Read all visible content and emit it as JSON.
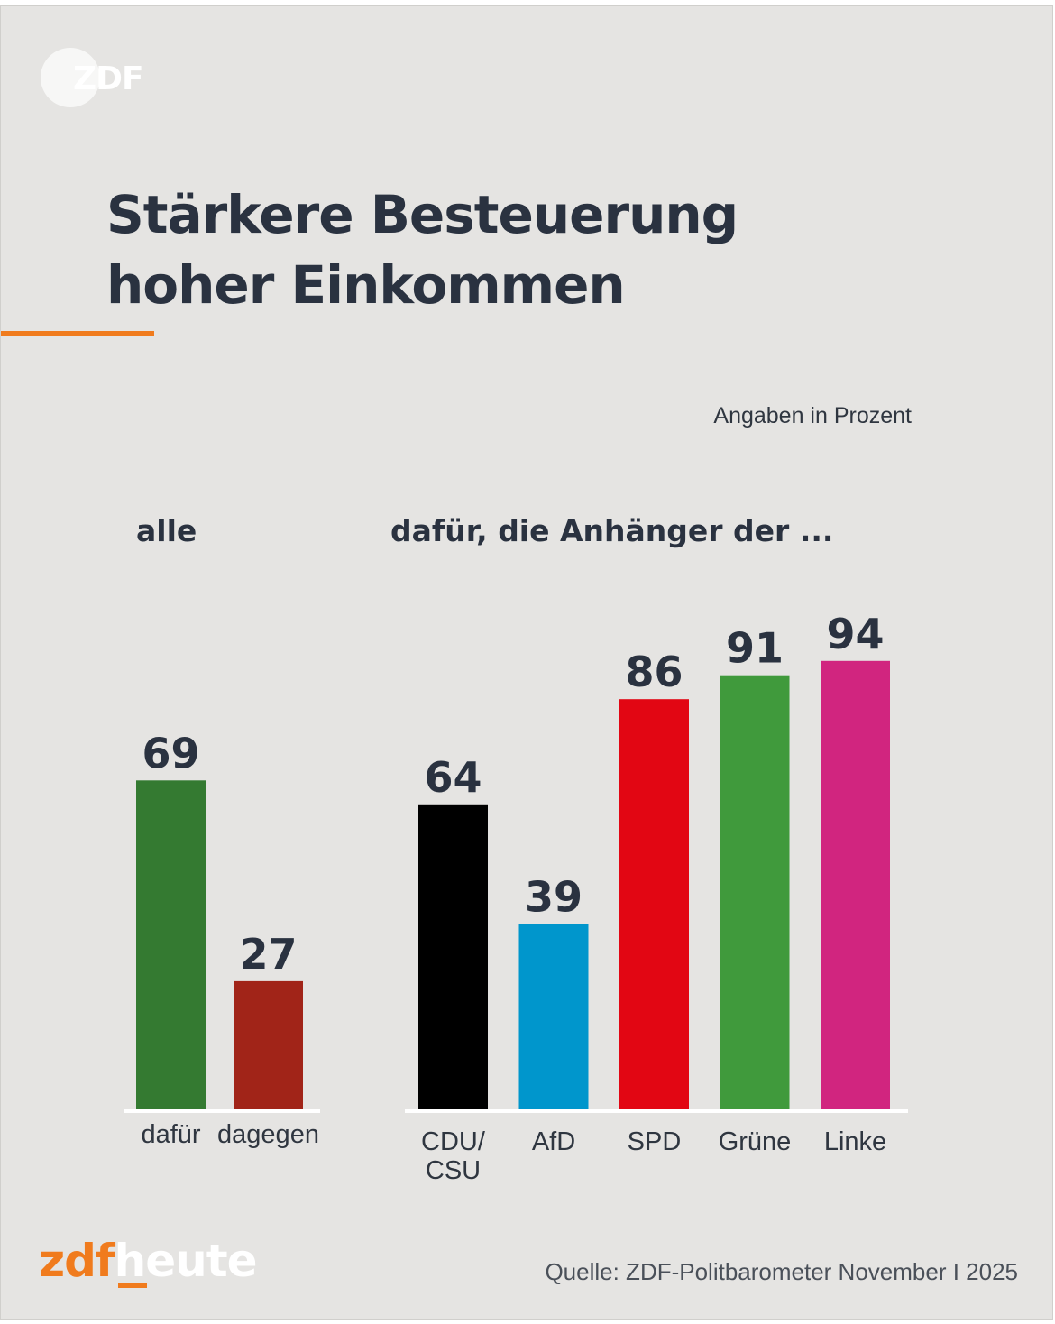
{
  "logo": {
    "text": "ZDF"
  },
  "title": {
    "line1": "Stärkere Besteuerung",
    "line2": "hoher Einkommen"
  },
  "unit_note": "Angaben in Prozent",
  "groups": {
    "left": "alle",
    "right": "dafür, die Anhänger der ..."
  },
  "footer": {
    "brand_zdf": "zdf",
    "brand_heute": "heute",
    "source": "Quelle: ZDF-Politbarometer November I 2025"
  },
  "chart_data": [
    {
      "type": "bar",
      "title": "alle",
      "categories": [
        "dafür",
        "dagegen"
      ],
      "values": [
        69,
        27
      ],
      "colors": [
        "#347a31",
        "#a12418"
      ],
      "ylim": [
        0,
        100
      ],
      "grid": false
    },
    {
      "type": "bar",
      "title": "dafür, die Anhänger der ...",
      "categories": [
        "CDU/ CSU",
        "AfD",
        "SPD",
        "Grüne",
        "Linke"
      ],
      "category_lines": [
        [
          "CDU/",
          "CSU"
        ],
        [
          "AfD"
        ],
        [
          "SPD"
        ],
        [
          "Grüne"
        ],
        [
          "Linke"
        ]
      ],
      "values": [
        64,
        39,
        86,
        91,
        94
      ],
      "colors": [
        "#000000",
        "#0096cc",
        "#e20613",
        "#409a3c",
        "#d1257f"
      ],
      "ylim": [
        0,
        100
      ],
      "grid": false
    }
  ]
}
